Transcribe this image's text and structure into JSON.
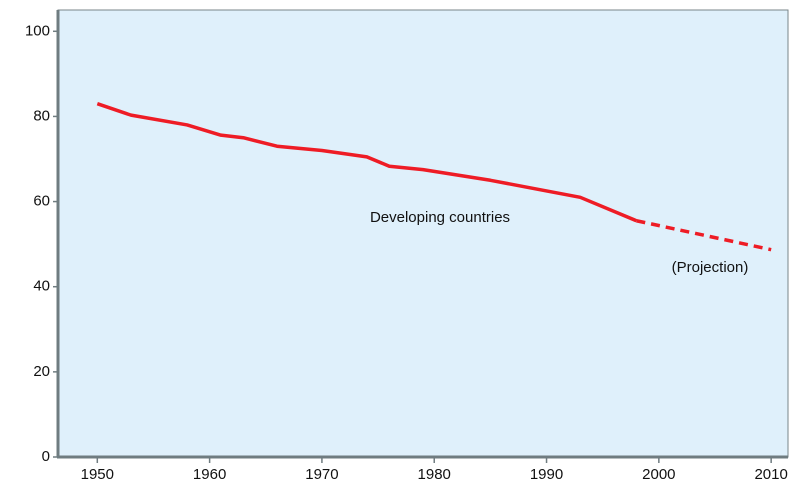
{
  "chart_data": {
    "type": "line",
    "xlim": [
      1946.5,
      2011.5
    ],
    "xticks": [
      1950,
      1960,
      1970,
      1980,
      1990,
      2000,
      2010
    ],
    "ylim": [
      0,
      105
    ],
    "yticks": [
      0,
      20,
      40,
      60,
      80,
      100
    ],
    "grid": false,
    "series": [
      {
        "name": "Developing countries",
        "color": "#ee1c25",
        "dashed": false,
        "x": [
          1950,
          1953,
          1958,
          1961,
          1963,
          1966,
          1970,
          1974,
          1976,
          1979,
          1985,
          1990,
          1993,
          1998
        ],
        "values": [
          83,
          80.3,
          78,
          75.6,
          75,
          73,
          72,
          70.5,
          68.3,
          67.5,
          65,
          62.5,
          61,
          55.5
        ]
      },
      {
        "name": "(Projection)",
        "color": "#ee1c25",
        "dashed": true,
        "x": [
          1998,
          2010
        ],
        "values": [
          55.5,
          48.7
        ]
      }
    ]
  }
}
